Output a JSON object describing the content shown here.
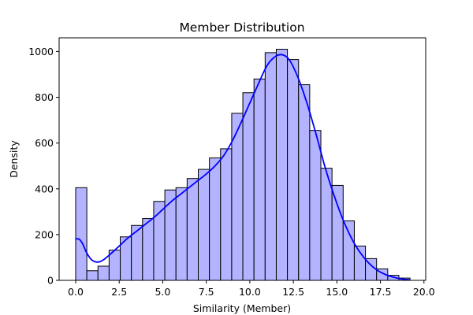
{
  "chart_data": {
    "type": "bar",
    "title": "Member Distribution",
    "xlabel": "Similarity (Member)",
    "ylabel": "Density",
    "xlim": [
      -0.95,
      20.1
    ],
    "ylim": [
      0,
      1060
    ],
    "xticks": [
      0.0,
      2.5,
      5.0,
      7.5,
      10.0,
      12.5,
      15.0,
      17.5,
      20.0
    ],
    "xtick_labels": [
      "0.0",
      "2.5",
      "5.0",
      "7.5",
      "10.0",
      "12.5",
      "15.0",
      "17.5",
      "20.0"
    ],
    "yticks": [
      0,
      200,
      400,
      600,
      800,
      1000
    ],
    "ytick_labels": [
      "0",
      "200",
      "400",
      "600",
      "800",
      "1000"
    ],
    "grid": false,
    "bin_width": 0.64,
    "bin_edges_start": 0.0,
    "bin_counts": [
      405,
      42,
      62,
      132,
      190,
      240,
      270,
      345,
      395,
      405,
      445,
      485,
      535,
      575,
      730,
      820,
      880,
      995,
      1010,
      965,
      855,
      655,
      490,
      415,
      260,
      150,
      95,
      50,
      22,
      10
    ],
    "kde_line": {
      "x": [
        0.0,
        0.2,
        0.4,
        0.6,
        0.8,
        1.0,
        1.3,
        1.6,
        2.0,
        2.5,
        3.0,
        3.5,
        4.0,
        4.5,
        5.0,
        5.5,
        6.0,
        6.5,
        7.0,
        7.5,
        8.0,
        8.5,
        9.0,
        9.5,
        10.0,
        10.5,
        11.0,
        11.5,
        11.9,
        12.3,
        12.8,
        13.3,
        13.8,
        14.3,
        14.8,
        15.3,
        15.8,
        16.3,
        16.8,
        17.3,
        17.8,
        18.3,
        18.8,
        19.2
      ],
      "y": [
        180,
        180,
        160,
        125,
        100,
        85,
        80,
        90,
        115,
        150,
        185,
        215,
        245,
        275,
        310,
        345,
        375,
        405,
        435,
        465,
        500,
        545,
        610,
        690,
        775,
        860,
        940,
        980,
        985,
        960,
        880,
        770,
        640,
        500,
        380,
        275,
        190,
        125,
        78,
        45,
        25,
        13,
        5,
        2
      ]
    },
    "colors": {
      "bar_fill": "#b3b3ff",
      "bar_edge": "#000000",
      "line": "#0000ff"
    }
  }
}
